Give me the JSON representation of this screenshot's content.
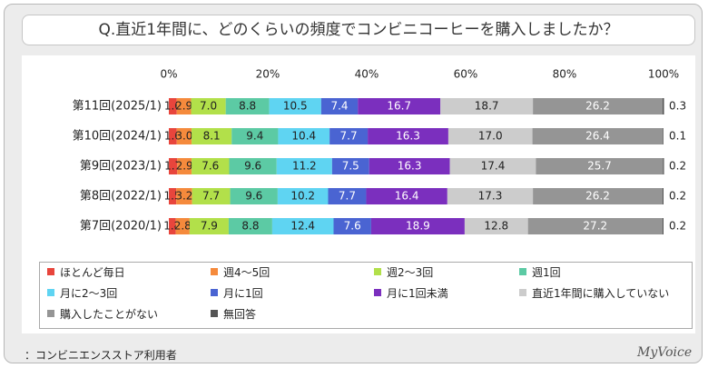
{
  "title": "Q.直近1年間に、どのくらいの頻度でコンビニコーヒーを購入しましたか？",
  "footnote": "：コンビニエンスストア利用者",
  "brand": "MyVoice",
  "chart_data": {
    "type": "bar",
    "orientation": "horizontal",
    "stacked": true,
    "x_ticks": [
      "0%",
      "20%",
      "40%",
      "60%",
      "80%",
      "100%"
    ],
    "xlim": [
      0,
      100
    ],
    "categories": [
      "第11回(2025/1)",
      "第10回(2024/1)",
      "第9回(2023/1)",
      "第8回(2022/1)",
      "第7回(2020/1)"
    ],
    "series": [
      {
        "name": "ほとんど毎日",
        "color": "#e8453c",
        "values": [
          1.6,
          1.6,
          1.7,
          1.5,
          1.4
        ]
      },
      {
        "name": "週4～5回",
        "color": "#f58a3c",
        "values": [
          2.9,
          3.0,
          2.9,
          3.2,
          2.8
        ]
      },
      {
        "name": "週2～3回",
        "color": "#b2e04a",
        "values": [
          7.0,
          8.1,
          7.6,
          7.7,
          7.9
        ]
      },
      {
        "name": "週1回",
        "color": "#5ccaa4",
        "values": [
          8.8,
          9.4,
          9.6,
          9.6,
          8.8
        ]
      },
      {
        "name": "月に2～3回",
        "color": "#5fd4f2",
        "values": [
          10.5,
          10.4,
          11.2,
          10.2,
          12.4
        ]
      },
      {
        "name": "月に1回",
        "color": "#4a64d2",
        "values": [
          7.4,
          7.7,
          7.5,
          7.7,
          7.6
        ]
      },
      {
        "name": "月に1回未満",
        "color": "#7b2fbe",
        "values": [
          16.7,
          16.3,
          16.3,
          16.4,
          18.9
        ]
      },
      {
        "name": "直近1年間に購入していない",
        "color": "#cccccc",
        "values": [
          18.7,
          17.0,
          17.4,
          17.3,
          12.8
        ]
      },
      {
        "name": "購入したことがない",
        "color": "#959595",
        "values": [
          26.2,
          26.4,
          25.7,
          26.2,
          27.2
        ]
      },
      {
        "name": "無回答",
        "color": "#555555",
        "values": [
          0.3,
          0.1,
          0.2,
          0.2,
          0.2
        ]
      }
    ],
    "value_labels": [
      [
        "1.6",
        "2.9",
        "7.0",
        "8.8",
        "10.5",
        "7.4",
        "16.7",
        "18.7",
        "26.2",
        "0.3"
      ],
      [
        "1.6",
        "3.0",
        "8.1",
        "9.4",
        "10.4",
        "7.7",
        "16.3",
        "17.0",
        "26.4",
        "0.1"
      ],
      [
        "1.7",
        "2.9",
        "7.6",
        "9.6",
        "11.2",
        "7.5",
        "16.3",
        "17.4",
        "25.7",
        "0.2"
      ],
      [
        "1.5",
        "3.2",
        "7.7",
        "9.6",
        "10.2",
        "7.7",
        "16.4",
        "17.3",
        "26.2",
        "0.2"
      ],
      [
        "1.4",
        "2.8",
        "7.9",
        "8.8",
        "12.4",
        "7.6",
        "18.9",
        "12.8",
        "27.2",
        "0.2"
      ]
    ],
    "legend_position": "bottom",
    "grid": false
  }
}
